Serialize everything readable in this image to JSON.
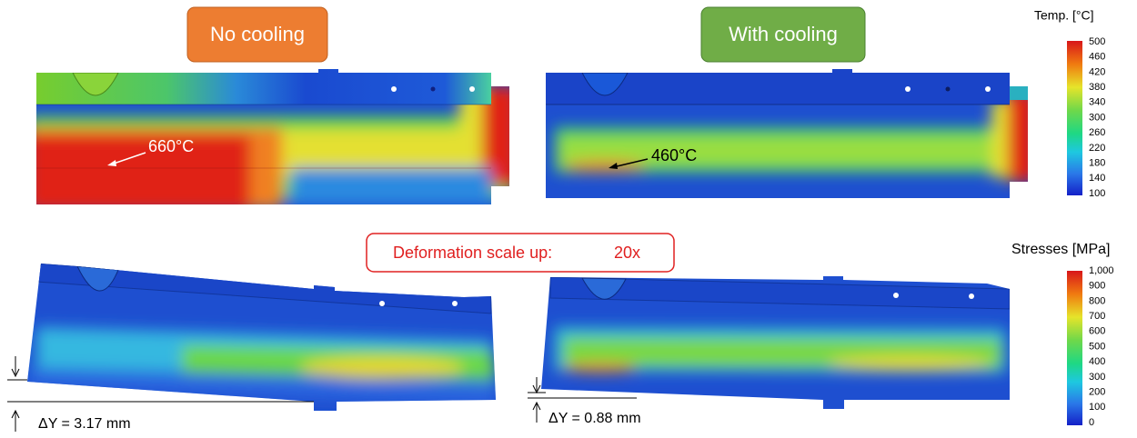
{
  "top": {
    "labels": [
      "No cooling",
      "With cooling"
    ],
    "callouts": [
      "660°C",
      "460°C"
    ]
  },
  "temp_scale": {
    "title": "Temp. [°C]",
    "ticks": [
      "500",
      "460",
      "420",
      "380",
      "340",
      "300",
      "260",
      "220",
      "180",
      "140",
      "100"
    ]
  },
  "deformation": {
    "label": "Deformation scale up:",
    "factor": "20x"
  },
  "stress_scale": {
    "title": "Stresses [MPa]",
    "ticks": [
      "1,000",
      "900",
      "800",
      "700",
      "600",
      "500",
      "400",
      "300",
      "200",
      "100",
      "0"
    ]
  },
  "bottom": {
    "deltas": [
      "ΔY = 3.17 mm",
      "ΔY = 0.88 mm"
    ]
  }
}
